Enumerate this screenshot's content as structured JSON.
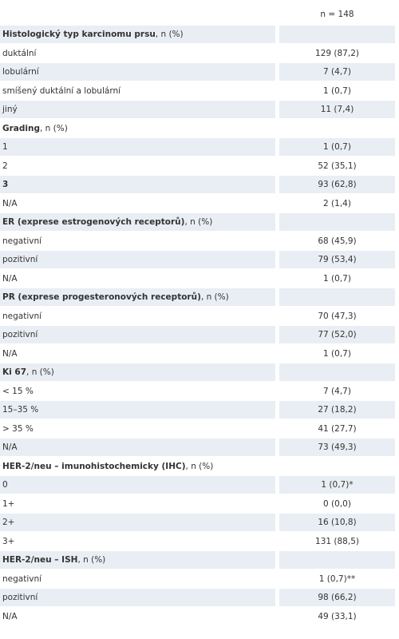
{
  "table": {
    "header": "n = 148",
    "rows": [
      {
        "label": "Histologický typ karcinomu prsu",
        "label_rest": ", n (%)",
        "bold": true
      },
      {
        "label": "duktální",
        "value": "129 (87,2)"
      },
      {
        "label": "lobulární",
        "value": "7 (4,7)"
      },
      {
        "label": "smíšený duktální a lobulární",
        "value": "1 (0,7)"
      },
      {
        "label": "jiný",
        "value": "11 (7,4)"
      },
      {
        "label": "Grading",
        "label_rest": ", n (%)",
        "bold": true
      },
      {
        "label": "1",
        "value": "1 (0,7)"
      },
      {
        "label": "2",
        "value": "52 (35,1)"
      },
      {
        "label": "3",
        "value": "93 (62,8)",
        "bold": true
      },
      {
        "label": "N/A",
        "value": "2 (1,4)"
      },
      {
        "label": "ER (exprese estrogenových receptorů)",
        "label_rest": ", n (%)",
        "bold": true
      },
      {
        "label": "negativní",
        "value": "68 (45,9)"
      },
      {
        "label": "pozitivní",
        "value": "79 (53,4)"
      },
      {
        "label": "N/A",
        "value": "1 (0,7)"
      },
      {
        "label": "PR (exprese progesteronových receptorů)",
        "label_rest": ", n (%)",
        "bold": true
      },
      {
        "label": "negativní",
        "value": "70 (47,3)"
      },
      {
        "label": "pozitivní",
        "value": "77 (52,0)"
      },
      {
        "label": "N/A",
        "value": "1 (0,7)"
      },
      {
        "label": "Ki 67",
        "label_rest": ", n (%)",
        "bold": true
      },
      {
        "label": "< 15 %",
        "value": "7 (4,7)"
      },
      {
        "label": "15–35 %",
        "value": "27 (18,2)"
      },
      {
        "label": "> 35 %",
        "value": "41 (27,7)"
      },
      {
        "label": "N/A",
        "value": "73 (49,3)"
      },
      {
        "label": "HER-2/neu – imunohistochemicky (IHC)",
        "label_rest": ", n (%)",
        "bold": true
      },
      {
        "label": "0",
        "value": "1 (0,7)*"
      },
      {
        "label": "1+",
        "value": "0 (0,0)"
      },
      {
        "label": "2+",
        "value": "16 (10,8)"
      },
      {
        "label": "3+",
        "value": "131 (88,5)"
      },
      {
        "label": "HER-2/neu – ISH",
        "label_rest": ", n (%)",
        "bold": true
      },
      {
        "label": "negativní",
        "value": "1 (0,7)**"
      },
      {
        "label": "pozitivní",
        "value": "98 (66,2)"
      },
      {
        "label": "N/A",
        "value": "49 (33,1)"
      }
    ]
  }
}
